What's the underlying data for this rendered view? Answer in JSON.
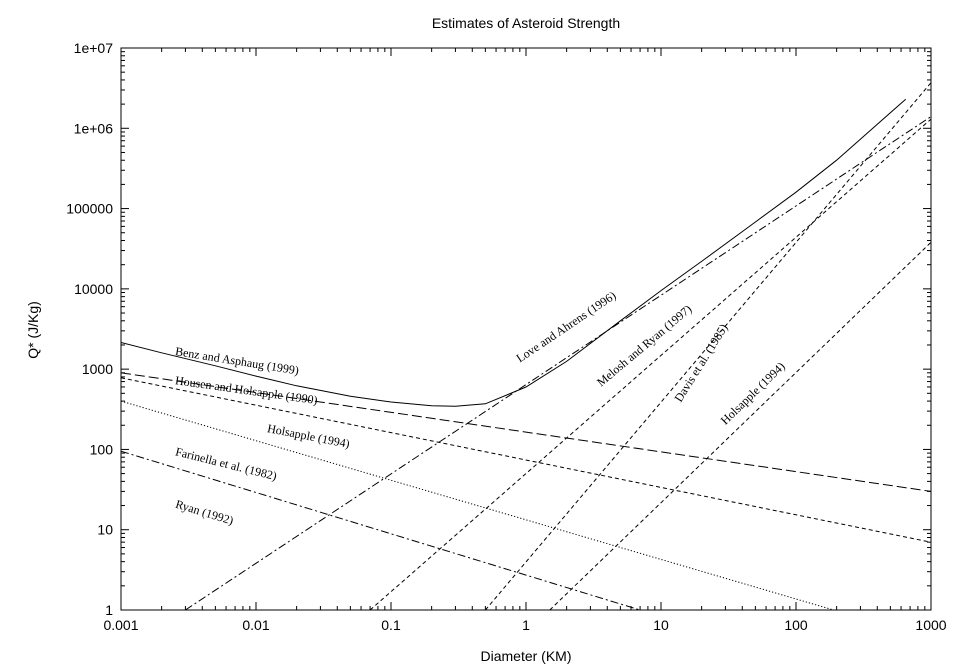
{
  "chart_data": {
    "type": "line",
    "title": "Estimates of Asteroid Strength",
    "xlabel": "Diameter (KM)",
    "ylabel": "Q* (J/Kg)",
    "xscale": "log",
    "yscale": "log",
    "xlim": [
      0.001,
      1000
    ],
    "ylim": [
      1,
      10000000
    ],
    "grid": false,
    "legend": "none",
    "x_ticks": [
      "0.001",
      "0.01",
      "0.1",
      "1",
      "10",
      "100",
      "1000"
    ],
    "y_ticks": [
      "1",
      "10",
      "100",
      "1000",
      "10000",
      "100000",
      "1e+06",
      "1e+07"
    ],
    "series": [
      {
        "name": "Benz and Asphaug (1999)",
        "style": "solid",
        "x": [
          0.001,
          0.002,
          0.005,
          0.01,
          0.02,
          0.05,
          0.1,
          0.2,
          0.3,
          0.5,
          1,
          2,
          5,
          10,
          20,
          50,
          100,
          200,
          650
        ],
        "y": [
          2150,
          1600,
          1100,
          820,
          620,
          460,
          390,
          350,
          345,
          370,
          600,
          1250,
          4000,
          9500,
          22000,
          68000,
          160000,
          400000,
          2300000
        ],
        "label_pos": [
          0.0025,
          1500
        ],
        "label_angle": 9
      },
      {
        "name": "Housen and Holsapple (1990)",
        "style": "long-dash",
        "x": [
          0.001,
          1000
        ],
        "y": [
          900,
          30
        ],
        "label_pos": [
          0.0025,
          650
        ],
        "label_angle": 8
      },
      {
        "name": "Holsapple (1994)",
        "style": "short-dash",
        "x": [
          0.001,
          1000
        ],
        "y": [
          780,
          7
        ],
        "label_pos": [
          0.012,
          165
        ],
        "label_angle": 11
      },
      {
        "name": "Farinella et al. (1982)",
        "style": "dotted",
        "x": [
          0.001,
          190
        ],
        "y": [
          400,
          1
        ],
        "label_pos": [
          0.0025,
          85
        ],
        "label_angle": 14
      },
      {
        "name": "Ryan (1992)",
        "style": "dash-dot",
        "x": [
          0.001,
          7
        ],
        "y": [
          95,
          1
        ],
        "label_pos": [
          0.0025,
          19
        ],
        "label_angle": 17
      },
      {
        "name": "Love and Ahrens (1996)",
        "style": "dash-dot",
        "x": [
          0.003,
          1000
        ],
        "y": [
          1,
          1400000
        ],
        "label_pos": [
          0.9,
          1200
        ],
        "label_angle": -34
      },
      {
        "name": "Melosh and Ryan (1997)",
        "style": "short-dash",
        "x": [
          0.07,
          1000
        ],
        "y": [
          1,
          1300000
        ],
        "label_pos": [
          3.6,
          600
        ],
        "label_angle": -40
      },
      {
        "name": "Davis et al. (1985)",
        "style": "short-dash",
        "x": [
          0.5,
          1000
        ],
        "y": [
          1,
          3700000
        ],
        "label_pos": [
          14,
          380
        ],
        "label_angle": -58
      },
      {
        "name": "Holsapple (1994)",
        "style": "short-dash",
        "x": [
          1.5,
          1000
        ],
        "y": [
          1,
          38000
        ],
        "label_pos": [
          30,
          200
        ],
        "label_angle": -44
      }
    ]
  }
}
